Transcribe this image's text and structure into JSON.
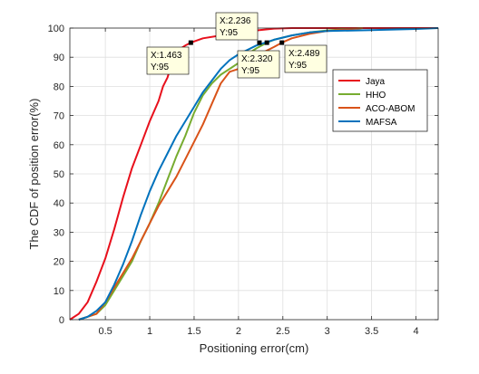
{
  "chart_data": {
    "type": "line",
    "xlabel": "Positioning error(cm)",
    "ylabel": "The CDF of position error(%)",
    "xlim": [
      0.1,
      4.25
    ],
    "ylim": [
      0,
      100
    ],
    "x_ticks": [
      0.5,
      1,
      1.5,
      2,
      2.5,
      3,
      3.5,
      4
    ],
    "x_tick_labels": [
      "0.5",
      "1",
      "1.5",
      "2",
      "2.5",
      "3",
      "3.5",
      "4"
    ],
    "y_ticks": [
      0,
      10,
      20,
      30,
      40,
      50,
      60,
      70,
      80,
      90,
      100
    ],
    "y_tick_labels": [
      "0",
      "10",
      "20",
      "30",
      "40",
      "50",
      "60",
      "70",
      "80",
      "90",
      "100"
    ],
    "grid": true,
    "legend_position": "right",
    "series": [
      {
        "name": "Jaya",
        "color": "#e8101c",
        "x": [
          0.1,
          0.2,
          0.3,
          0.4,
          0.5,
          0.6,
          0.7,
          0.8,
          0.9,
          1.0,
          1.1,
          1.15,
          1.2,
          1.25,
          1.3,
          1.35,
          1.4,
          1.463,
          1.6,
          1.8,
          2.0,
          2.236,
          2.4,
          2.6,
          4.25
        ],
        "y": [
          0,
          2,
          6,
          13,
          21,
          31,
          42,
          52,
          60,
          68,
          75,
          80,
          83,
          88,
          92,
          93,
          94,
          95,
          96.5,
          97.5,
          98.5,
          99.3,
          99.8,
          100,
          100
        ]
      },
      {
        "name": "HHO",
        "color": "#77ac30",
        "x": [
          0.2,
          0.3,
          0.4,
          0.5,
          0.6,
          0.7,
          0.8,
          0.9,
          1.0,
          1.1,
          1.2,
          1.3,
          1.4,
          1.5,
          1.6,
          1.7,
          1.8,
          1.9,
          2.0,
          2.1,
          2.2,
          2.32,
          2.4,
          2.6,
          2.8,
          3.0,
          3.2,
          3.4
        ],
        "y": [
          0,
          1,
          2,
          5,
          10,
          15,
          20,
          27,
          33,
          40,
          48,
          56,
          63,
          71,
          77,
          81,
          84,
          86,
          88,
          91,
          93,
          95,
          96,
          97.5,
          98.5,
          99.2,
          99.6,
          100
        ]
      },
      {
        "name": "ACO-ABOM",
        "color": "#d95319",
        "x": [
          0.2,
          0.3,
          0.4,
          0.5,
          0.6,
          0.7,
          0.8,
          0.9,
          1.0,
          1.1,
          1.2,
          1.3,
          1.4,
          1.5,
          1.6,
          1.7,
          1.8,
          1.9,
          2.0,
          2.1,
          2.2,
          2.3,
          2.4,
          2.489,
          2.6,
          2.8,
          3.0,
          3.2,
          3.4
        ],
        "y": [
          0,
          1,
          2,
          6,
          11,
          16,
          21,
          27,
          33,
          39,
          44,
          49,
          55,
          61,
          67,
          74,
          81,
          85,
          86,
          88,
          90,
          92,
          93.5,
          95,
          96.5,
          98,
          99,
          99.5,
          100
        ]
      },
      {
        "name": "MAFSA",
        "color": "#0072bd",
        "x": [
          0.2,
          0.3,
          0.4,
          0.5,
          0.6,
          0.7,
          0.8,
          0.9,
          1.0,
          1.1,
          1.2,
          1.3,
          1.4,
          1.5,
          1.6,
          1.7,
          1.8,
          1.9,
          2.0,
          2.1,
          2.2,
          2.4,
          2.6,
          2.8,
          3.0,
          3.5,
          4.0,
          4.25
        ],
        "y": [
          0,
          1,
          3,
          6,
          12,
          19,
          27,
          36,
          44,
          51,
          57,
          63,
          68,
          73,
          78,
          82,
          86,
          89,
          91,
          92.5,
          94,
          96,
          97.5,
          98.5,
          99,
          99.3,
          99.7,
          100
        ]
      }
    ],
    "datatips": [
      {
        "x_text": "X:1.463",
        "y_text": "Y:95",
        "x": 1.463,
        "y": 95
      },
      {
        "x_text": "X:2.236",
        "y_text": "Y:95",
        "x": 2.236,
        "y": 95
      },
      {
        "x_text": "X:2.320",
        "y_text": "Y:95",
        "x": 2.32,
        "y": 95
      },
      {
        "x_text": "X:2.489",
        "y_text": "Y:95",
        "x": 2.489,
        "y": 95
      }
    ]
  }
}
